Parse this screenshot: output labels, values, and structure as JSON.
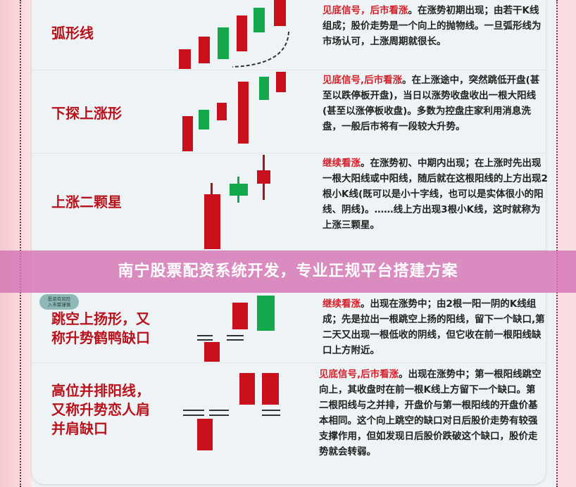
{
  "colors": {
    "accent_red": "#c8101c",
    "bull_green": "#14a84c",
    "banner": "#d678b6"
  },
  "badge": {
    "line1": "投资有风险",
    "line2": "入市需谨慎"
  },
  "banner": {
    "text": "南宁股票配资系统开发，专业正规平台搭建方案"
  },
  "patterns": [
    {
      "name": "弧形线",
      "signal": "见底信号，后市看涨",
      "description": "。在涨势初期出现；由若干K线组成；股价走势是一个向上的抛物线。一旦弧形线为市场认可，上涨周期就很长。"
    },
    {
      "name": "下探上涨形",
      "signal": "见底信号,后市看涨",
      "description": "。在上涨途中，突然跳低开盘(甚至以跌停板开盘)，当日以涨势收盘收出一根大阳线(甚至以涨停板收盘)。多数为控盘庄家利用消息洗盘，一般后市将有一段较大升势。"
    },
    {
      "name": "上涨二颗星",
      "signal": "继续看涨",
      "description": "。在涨势初、中期内出现；在上涨时先出现一根大阳线或中阳线，随后就在这根阳线的上方出现2根小K线(既可以是小十字线，也可以是实体很小的阳线、阴线)。……线上方出现3根小K线，这时就称为上涨三颗星。"
    },
    {
      "name": "跳空上扬形，又称升势鹤鸭缺口",
      "signal": "继续看涨",
      "description": "。出现在涨势中；由2根一阳一阴的K线组成；先是拉出一根跳空上扬的阳线，留下一个缺口,第二天又出现一根低收的阴线，但它收在前一根阳线缺口上方附近。"
    },
    {
      "name": "高位并排阳线，又称升势恋人肩并肩缺口",
      "signal": "见底信号,后市看涨",
      "description": "。出现在涨势中；第一根阳线跳空向上，其收盘时在前一根K线上方留下一个缺口。第二根阳线与之并排，开盘价与第一根阳线的开盘价基本相同。这个向上跳空的缺口对日后股价走势有较强支撑作用，但如发现日后股价跌破这个缺口，股价走势就会转弱。"
    }
  ]
}
